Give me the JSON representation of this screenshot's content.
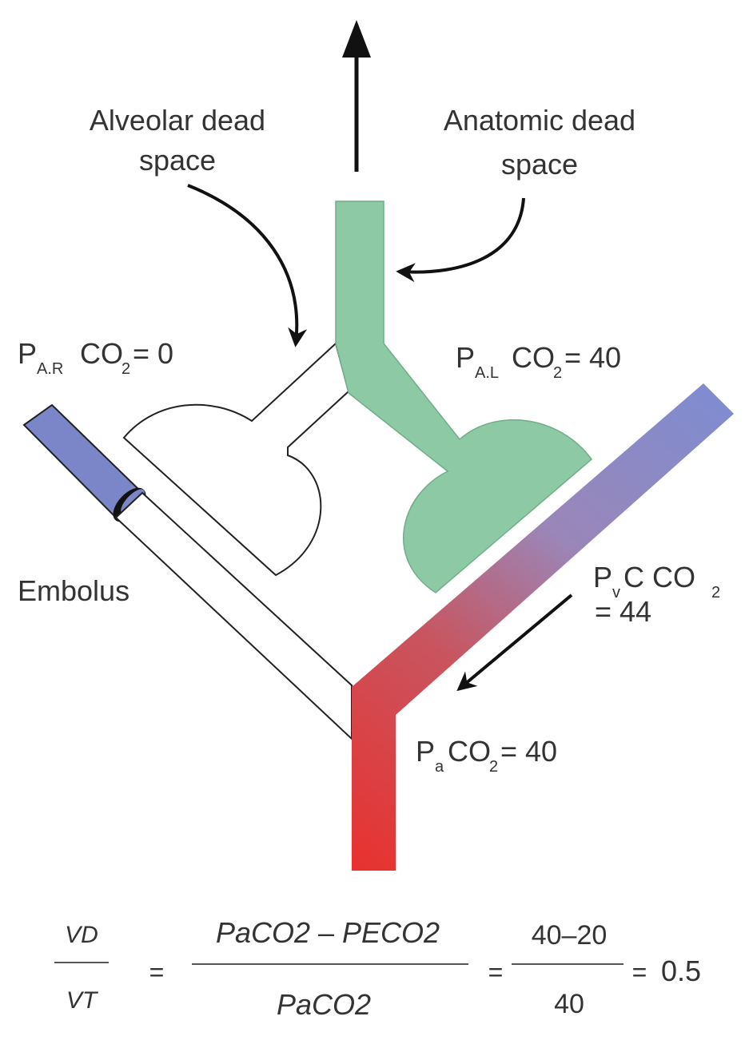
{
  "labels": {
    "alveolar_dead_space": [
      "Alveolar dead",
      "space"
    ],
    "anatomic_dead_space": [
      "Anatomic dead",
      "space"
    ],
    "right_alveolar": {
      "p": "P",
      "sub": "A.R",
      "gas": "CO",
      "gas_sub": "2",
      "rest": " = 0"
    },
    "left_alveolar": {
      "p": "P",
      "sub": "A.L",
      "gas": "CO",
      "gas_sub": "2",
      "rest": " = 40"
    },
    "venous": {
      "p": "P",
      "sub": "v",
      "rest1": "C CO",
      "gas_sub": "2",
      "line2": "= 44"
    },
    "arterial": {
      "p": "P",
      "sub": "a",
      "gas": "CO",
      "gas_sub": "2",
      "rest": " = 40"
    },
    "embolus": "Embolus"
  },
  "equation": {
    "lhs_num": "VD",
    "lhs_den": "VT",
    "eq1": "=",
    "mid_num": "PaCO2 – PECO2",
    "mid_den": "PaCO2",
    "eq2": "=",
    "num_num": "40–20",
    "num_den": "40",
    "eq3": "=",
    "result": "0.5"
  },
  "colors": {
    "green": "#8cc9a4",
    "blue": "#7a86c8",
    "red": "#e0393a",
    "ink": "#222222"
  }
}
